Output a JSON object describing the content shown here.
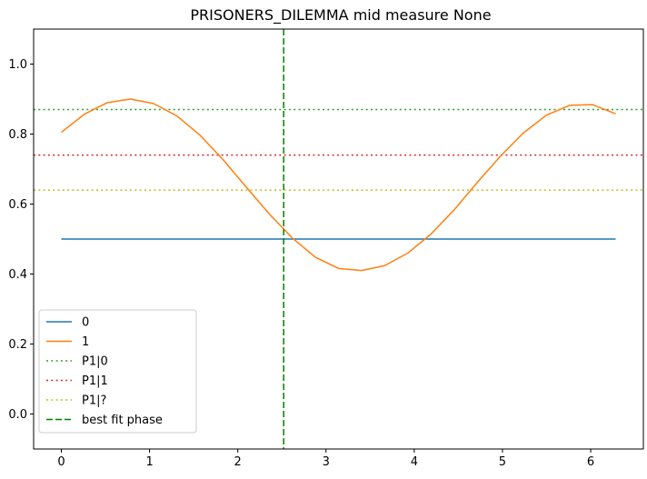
{
  "chart_data": {
    "type": "line",
    "title": "PRISONERS_DILEMMA mid measure None",
    "xlabel": "",
    "ylabel": "",
    "xlim": [
      -0.314,
      6.597
    ],
    "ylim": [
      -0.1,
      1.1
    ],
    "x_ticks": [
      0,
      1,
      2,
      3,
      4,
      5,
      6
    ],
    "y_ticks": [
      0.0,
      0.2,
      0.4,
      0.6,
      0.8,
      1.0
    ],
    "x_tick_labels": [
      "0",
      "1",
      "2",
      "3",
      "4",
      "5",
      "6"
    ],
    "y_tick_labels": [
      "0.0",
      "0.2",
      "0.4",
      "0.6",
      "0.8",
      "1.0"
    ],
    "grid": false,
    "legend_position": "lower-left",
    "series": [
      {
        "name": "0",
        "color": "#1f77b4",
        "style": "solid",
        "x": [
          0,
          0.262,
          0.524,
          0.785,
          1.047,
          1.309,
          1.571,
          1.833,
          2.094,
          2.356,
          2.618,
          2.88,
          3.142,
          3.403,
          3.665,
          3.927,
          4.189,
          4.451,
          4.712,
          4.974,
          5.236,
          5.498,
          5.76,
          6.021,
          6.283
        ],
        "y": [
          0.5,
          0.5,
          0.5,
          0.5,
          0.5,
          0.5,
          0.5,
          0.5,
          0.5,
          0.5,
          0.5,
          0.5,
          0.5,
          0.5,
          0.5,
          0.5,
          0.5,
          0.5,
          0.5,
          0.5,
          0.5,
          0.5,
          0.5,
          0.5,
          0.5
        ]
      },
      {
        "name": "1",
        "color": "#ff7f0e",
        "style": "solid",
        "x": [
          0,
          0.262,
          0.524,
          0.785,
          1.047,
          1.309,
          1.571,
          1.833,
          2.094,
          2.356,
          2.618,
          2.88,
          3.142,
          3.403,
          3.665,
          3.927,
          4.189,
          4.451,
          4.712,
          4.974,
          5.236,
          5.498,
          5.76,
          6.021,
          6.283
        ],
        "y": [
          0.805,
          0.857,
          0.89,
          0.9,
          0.887,
          0.852,
          0.797,
          0.727,
          0.649,
          0.572,
          0.503,
          0.448,
          0.416,
          0.41,
          0.424,
          0.46,
          0.514,
          0.583,
          0.661,
          0.736,
          0.803,
          0.854,
          0.882,
          0.884,
          0.858
        ]
      }
    ],
    "hlines": [
      {
        "name": "P1|0",
        "y": 0.87,
        "color": "#2ca02c",
        "style": "dotted"
      },
      {
        "name": "P1|1",
        "y": 0.74,
        "color": "#d62728",
        "style": "dotted"
      },
      {
        "name": "P1|?",
        "y": 0.64,
        "color": "#bcbd22",
        "style": "dotted"
      }
    ],
    "vlines": [
      {
        "name": "best fit phase",
        "x": 2.52,
        "color": "#008000",
        "style": "dashed"
      }
    ],
    "legend": [
      "0",
      "1",
      "P1|0",
      "P1|1",
      "P1|?",
      "best fit phase"
    ]
  }
}
